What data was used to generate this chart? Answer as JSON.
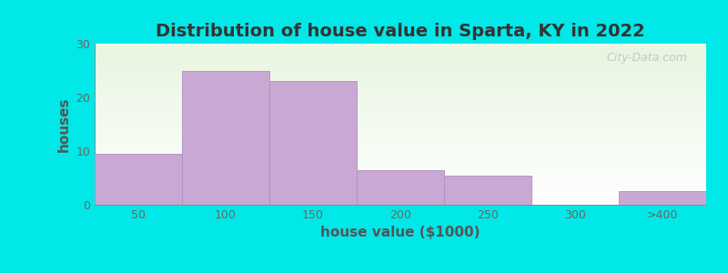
{
  "title": "Distribution of house value in Sparta, KY in 2022",
  "xlabel": "house value ($1000)",
  "ylabel": "houses",
  "bar_labels": [
    "50",
    "100",
    "150",
    "200",
    "250",
    "300",
    ">400"
  ],
  "bar_heights": [
    9.5,
    25,
    23,
    6.5,
    5.5,
    0,
    2.5
  ],
  "bar_color": "#c9a8d4",
  "bar_edge_color": "#b090c0",
  "ylim": [
    0,
    30
  ],
  "yticks": [
    0,
    10,
    20,
    30
  ],
  "figure_bg": "#00e8e8",
  "plot_bg_color1": "#e8f5e0",
  "plot_bg_color2": "#f8fff8",
  "plot_bg_color3": "#ffffff",
  "title_fontsize": 14,
  "axis_label_fontsize": 11,
  "tick_fontsize": 9,
  "watermark_text": "City-Data.com",
  "bar_width": 1.0
}
